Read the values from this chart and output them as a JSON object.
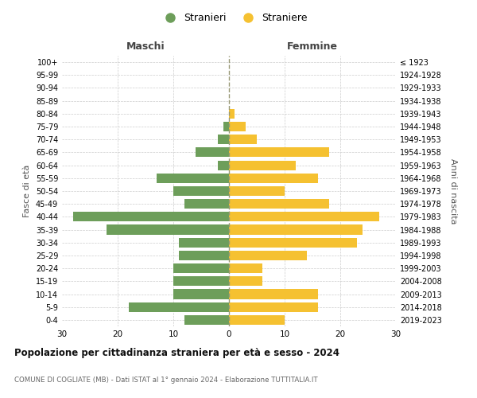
{
  "age_groups": [
    "0-4",
    "5-9",
    "10-14",
    "15-19",
    "20-24",
    "25-29",
    "30-34",
    "35-39",
    "40-44",
    "45-49",
    "50-54",
    "55-59",
    "60-64",
    "65-69",
    "70-74",
    "75-79",
    "80-84",
    "85-89",
    "90-94",
    "95-99",
    "100+"
  ],
  "birth_years": [
    "2019-2023",
    "2014-2018",
    "2009-2013",
    "2004-2008",
    "1999-2003",
    "1994-1998",
    "1989-1993",
    "1984-1988",
    "1979-1983",
    "1974-1978",
    "1969-1973",
    "1964-1968",
    "1959-1963",
    "1954-1958",
    "1949-1953",
    "1944-1948",
    "1939-1943",
    "1934-1938",
    "1929-1933",
    "1924-1928",
    "≤ 1923"
  ],
  "males": [
    8,
    18,
    10,
    10,
    10,
    9,
    9,
    22,
    28,
    8,
    10,
    13,
    2,
    6,
    2,
    1,
    0,
    0,
    0,
    0,
    0
  ],
  "females": [
    10,
    16,
    16,
    6,
    6,
    14,
    23,
    24,
    27,
    18,
    10,
    16,
    12,
    18,
    5,
    3,
    1,
    0,
    0,
    0,
    0
  ],
  "male_color": "#6d9e5a",
  "female_color": "#f5c131",
  "background_color": "#ffffff",
  "grid_color": "#cccccc",
  "title": "Popolazione per cittadinanza straniera per età e sesso - 2024",
  "subtitle": "COMUNE DI COGLIATE (MB) - Dati ISTAT al 1° gennaio 2024 - Elaborazione TUTTITALIA.IT",
  "xlabel_left": "Maschi",
  "xlabel_right": "Femmine",
  "ylabel_left": "Fasce di età",
  "ylabel_right": "Anni di nascita",
  "legend_male": "Stranieri",
  "legend_female": "Straniere",
  "xlim": 30,
  "bar_height": 0.75,
  "center_line_color": "#999977"
}
